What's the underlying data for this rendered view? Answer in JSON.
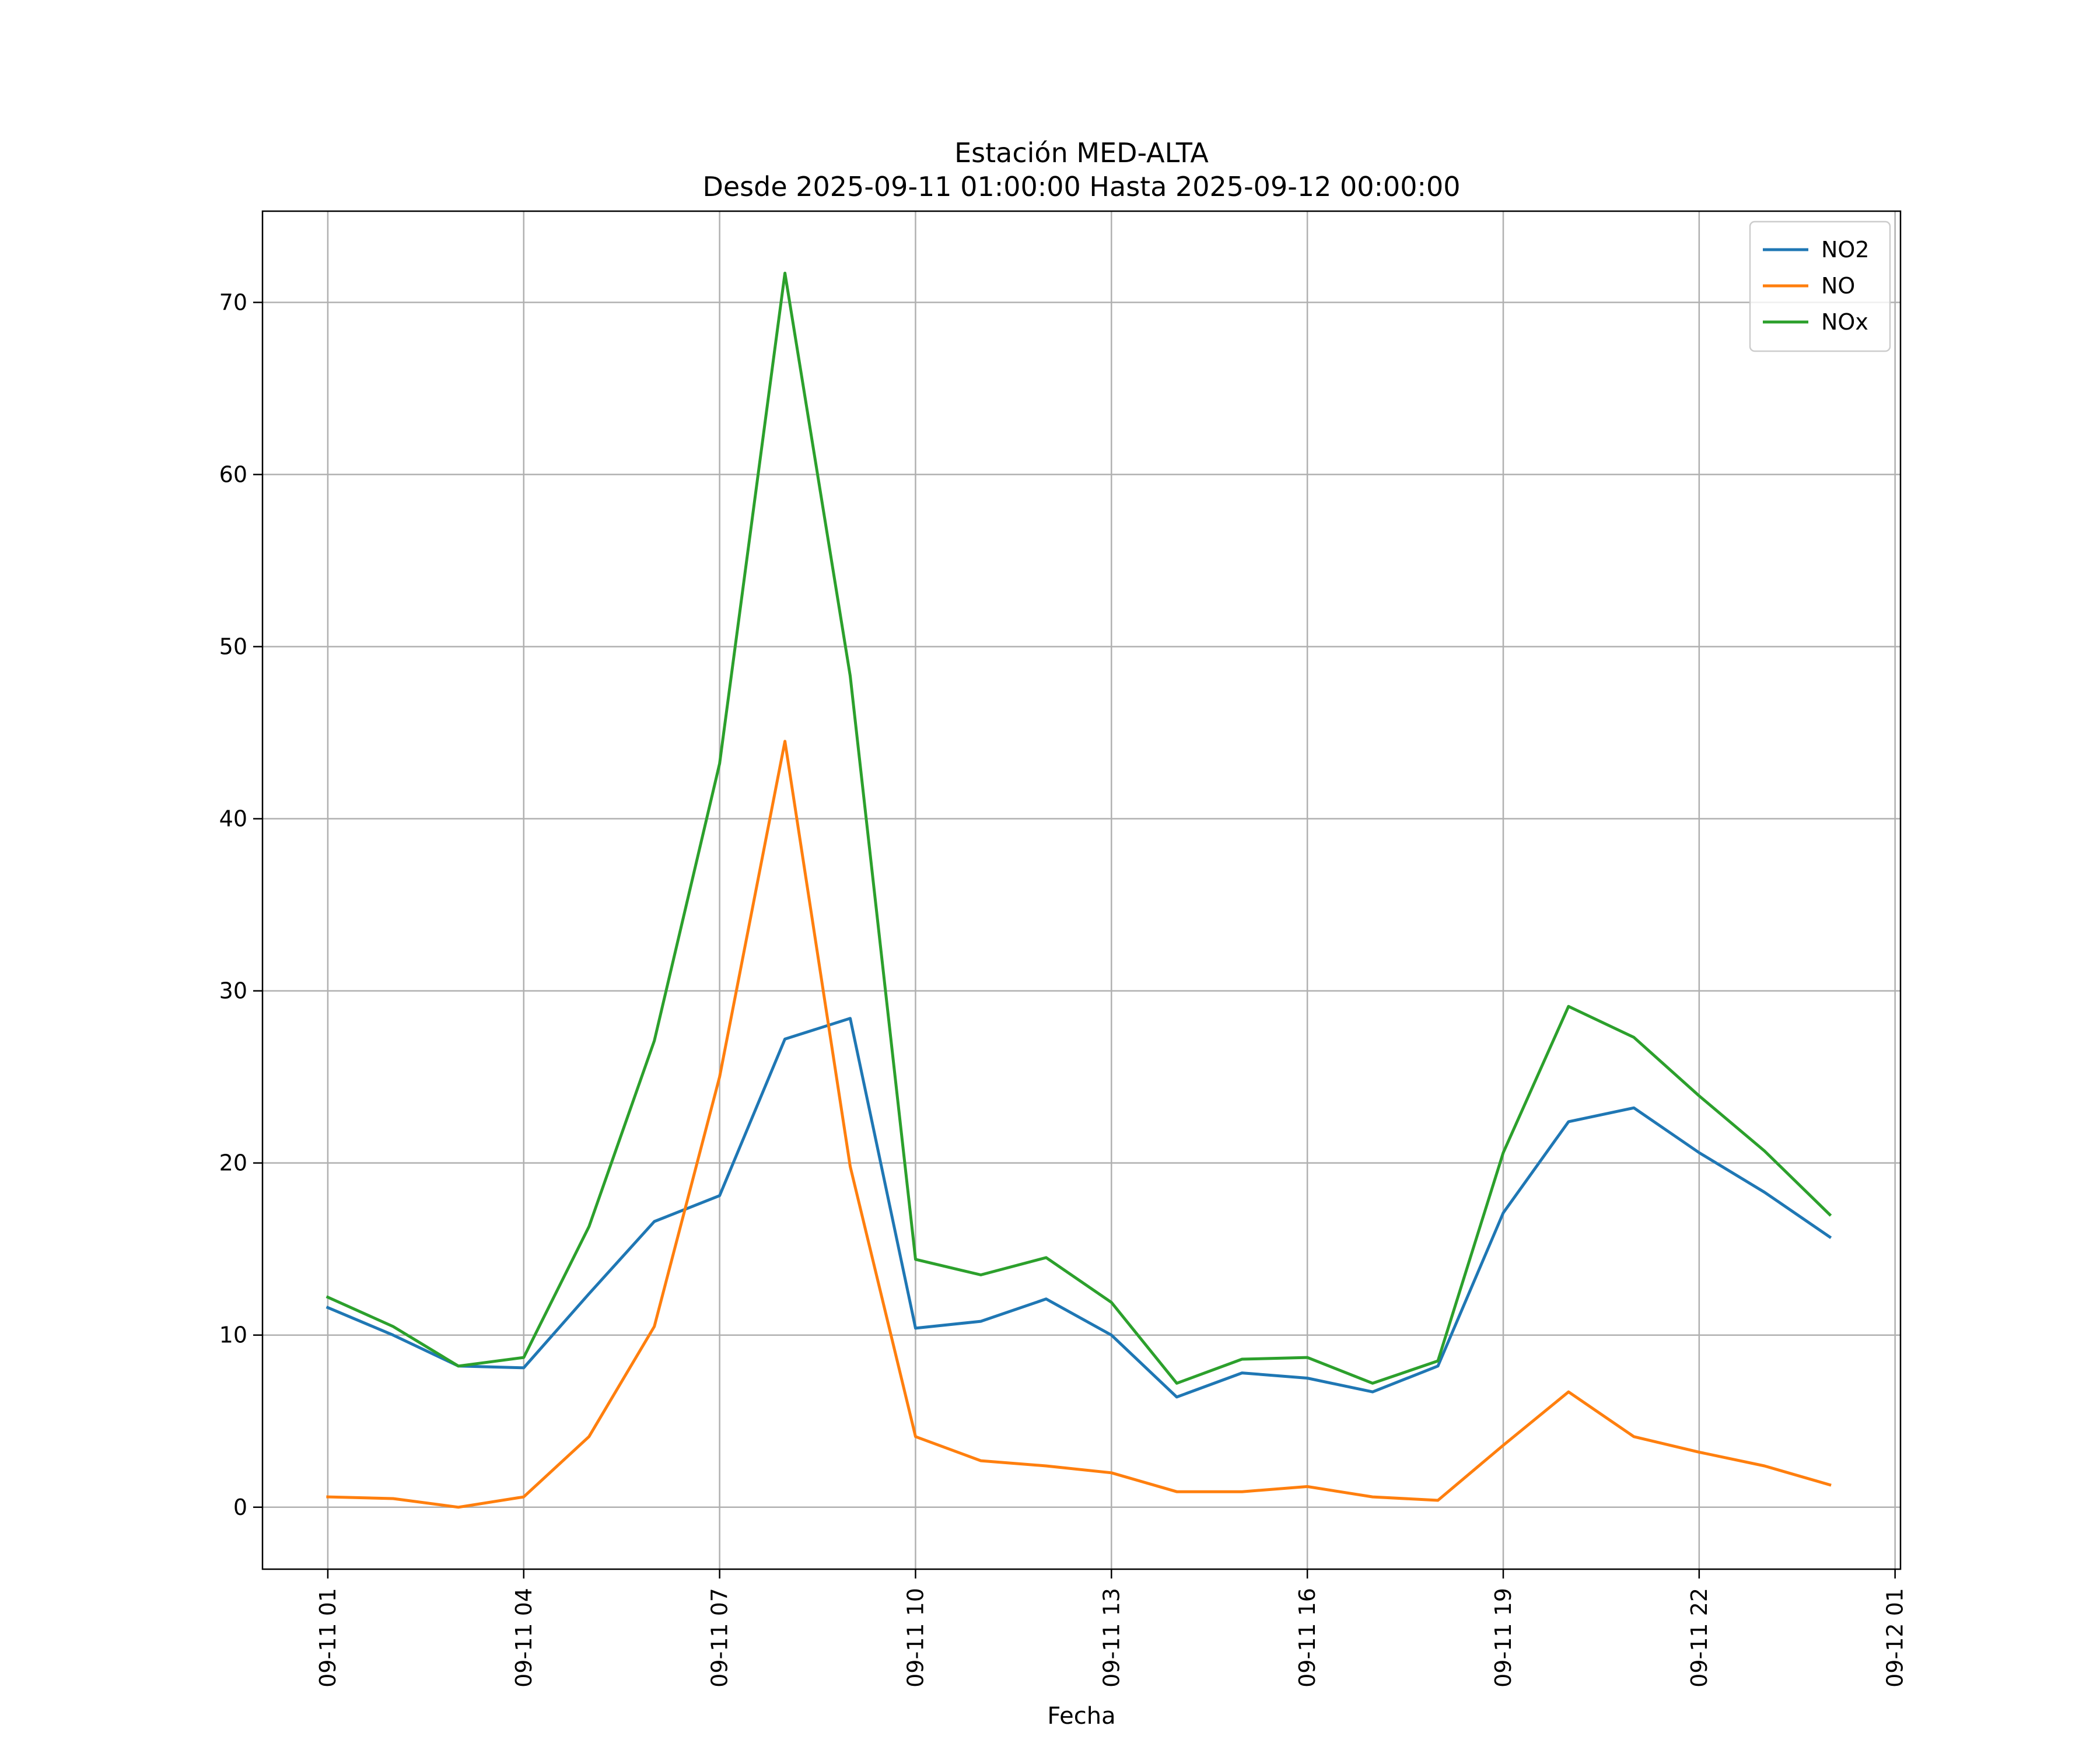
{
  "chart_data": {
    "type": "line",
    "title": "Estación MED-ALTA",
    "subtitle": "Desde 2025-09-11 01:00:00 Hasta 2025-09-12 00:00:00",
    "xlabel": "Fecha",
    "ylabel": "",
    "x": [
      "2025-09-11 01:00",
      "2025-09-11 02:00",
      "2025-09-11 03:00",
      "2025-09-11 04:00",
      "2025-09-11 05:00",
      "2025-09-11 06:00",
      "2025-09-11 07:00",
      "2025-09-11 08:00",
      "2025-09-11 09:00",
      "2025-09-11 10:00",
      "2025-09-11 11:00",
      "2025-09-11 12:00",
      "2025-09-11 13:00",
      "2025-09-11 14:00",
      "2025-09-11 15:00",
      "2025-09-11 16:00",
      "2025-09-11 17:00",
      "2025-09-11 18:00",
      "2025-09-11 19:00",
      "2025-09-11 20:00",
      "2025-09-11 21:00",
      "2025-09-11 22:00",
      "2025-09-11 23:00",
      "2025-09-12 00:00"
    ],
    "xlim": [
      "2025-09-11 00:00",
      "2025-09-12 01:05"
    ],
    "x_ticks": [
      {
        "at": "2025-09-11 01:00",
        "label": "09-11 01"
      },
      {
        "at": "2025-09-11 04:00",
        "label": "09-11 04"
      },
      {
        "at": "2025-09-11 07:00",
        "label": "09-11 07"
      },
      {
        "at": "2025-09-11 10:00",
        "label": "09-11 10"
      },
      {
        "at": "2025-09-11 13:00",
        "label": "09-11 13"
      },
      {
        "at": "2025-09-11 16:00",
        "label": "09-11 16"
      },
      {
        "at": "2025-09-11 19:00",
        "label": "09-11 19"
      },
      {
        "at": "2025-09-11 22:00",
        "label": "09-11 22"
      },
      {
        "at": "2025-09-12 01:00",
        "label": "09-12 01"
      }
    ],
    "ylim": [
      -3.6,
      75.3
    ],
    "y_ticks": [
      0,
      10,
      20,
      30,
      40,
      50,
      60,
      70
    ],
    "grid": true,
    "legend": "top-right",
    "series": [
      {
        "name": "NO2",
        "color": "#1f77b4",
        "values": [
          11.6,
          10.0,
          8.2,
          8.1,
          12.4,
          16.6,
          18.1,
          27.2,
          28.4,
          10.4,
          10.8,
          12.1,
          10.0,
          6.4,
          7.8,
          7.5,
          6.7,
          8.2,
          17.1,
          22.4,
          23.2,
          20.6,
          18.3,
          15.7
        ]
      },
      {
        "name": "NO",
        "color": "#ff7f0e",
        "values": [
          0.6,
          0.5,
          0.0,
          0.6,
          4.1,
          10.5,
          25.0,
          44.5,
          19.8,
          4.1,
          2.7,
          2.4,
          2.0,
          0.9,
          0.9,
          1.2,
          0.6,
          0.4,
          3.6,
          6.7,
          4.1,
          3.2,
          2.4,
          1.3
        ]
      },
      {
        "name": "NOx",
        "color": "#2ca02c",
        "values": [
          12.2,
          10.5,
          8.2,
          8.7,
          16.3,
          27.1,
          43.2,
          71.7,
          48.3,
          14.4,
          13.5,
          14.5,
          11.9,
          7.2,
          8.6,
          8.7,
          7.2,
          8.5,
          20.6,
          29.1,
          27.3,
          23.9,
          20.7,
          17.0
        ]
      }
    ]
  }
}
